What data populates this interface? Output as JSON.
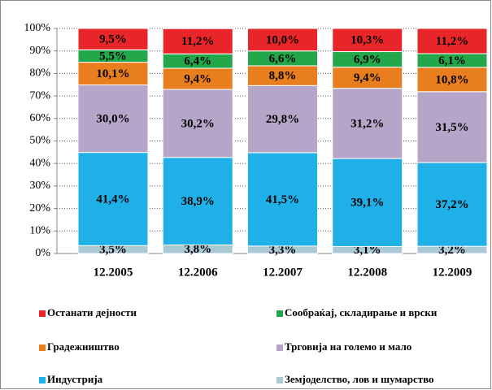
{
  "chart_data": {
    "type": "stacked_bar_100",
    "categories": [
      "12.2005",
      "12.2006",
      "12.2007",
      "12.2008",
      "12.2009"
    ],
    "series": [
      {
        "name": "Останати дејности",
        "color": "#e8262a",
        "values": [
          9.5,
          11.2,
          10.0,
          10.3,
          11.2
        ],
        "value_labels": [
          "9,5%",
          "11,2%",
          "10,0%",
          "10,3%",
          "11,2%"
        ]
      },
      {
        "name": "Сообраќај, складирање и врски",
        "color": "#22a84b",
        "values": [
          5.5,
          6.4,
          6.6,
          6.9,
          6.1
        ],
        "value_labels": [
          "5,5%",
          "6,4%",
          "6,6%",
          "6,9%",
          "6,1%"
        ]
      },
      {
        "name": "Градежништво",
        "color": "#e97e1f",
        "values": [
          10.1,
          9.4,
          8.8,
          9.4,
          10.8
        ],
        "value_labels": [
          "10,1%",
          "9,4%",
          "8,8%",
          "9,4%",
          "10,8%"
        ]
      },
      {
        "name": "Трговија на големо и мало",
        "color": "#b5a5c9",
        "values": [
          30.0,
          30.2,
          29.8,
          31.2,
          31.5
        ],
        "value_labels": [
          "30,0%",
          "30,2%",
          "29,8%",
          "31,2%",
          "31,5%"
        ]
      },
      {
        "name": "Индустрија",
        "color": "#20b0e8",
        "values": [
          41.4,
          38.9,
          41.5,
          39.1,
          37.2
        ],
        "value_labels": [
          "41,4%",
          "38,9%",
          "41,5%",
          "39,1%",
          "37,2%"
        ]
      },
      {
        "name": "Земјоделство, лов и шумарство",
        "color": "#a9c9d5",
        "values": [
          3.5,
          3.8,
          3.3,
          3.1,
          3.2
        ],
        "value_labels": [
          "3,5%",
          "3,8%",
          "3,3%",
          "3,1%",
          "3,2%"
        ]
      }
    ],
    "ylim": [
      0,
      100
    ],
    "yticks": [
      {
        "value": 0,
        "label": "0%"
      },
      {
        "value": 10,
        "label": "10%"
      },
      {
        "value": 20,
        "label": "20%"
      },
      {
        "value": 30,
        "label": "30%"
      },
      {
        "value": 40,
        "label": "40%"
      },
      {
        "value": 50,
        "label": "50%"
      },
      {
        "value": 60,
        "label": "60%"
      },
      {
        "value": 70,
        "label": "70%"
      },
      {
        "value": 80,
        "label": "80%"
      },
      {
        "value": 90,
        "label": "90%"
      },
      {
        "value": 100,
        "label": "100%"
      }
    ],
    "grid": true,
    "legend": "bottom"
  }
}
